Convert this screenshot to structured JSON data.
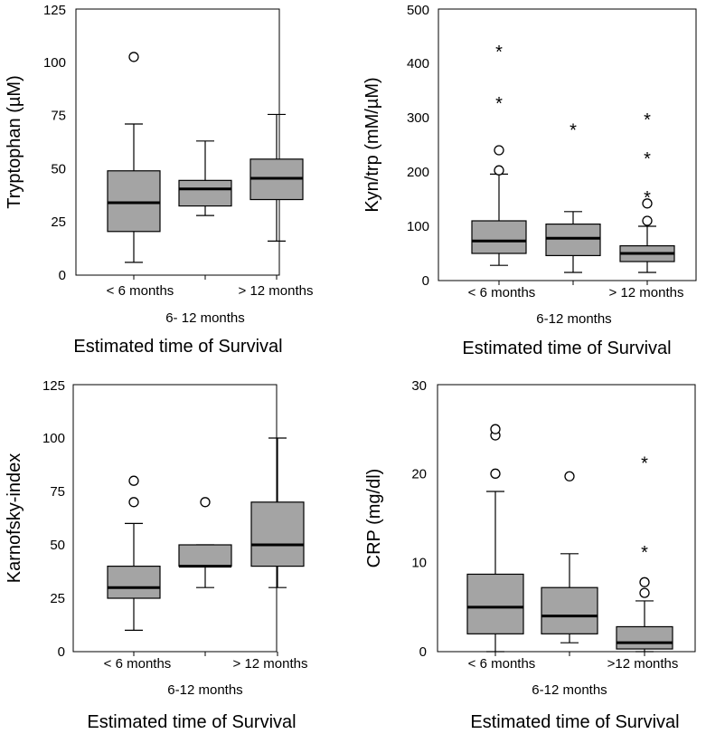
{
  "chart_data": [
    {
      "type": "boxplot",
      "ylabel": "Tryptophan (µM)",
      "xtitle": "Estimated time of Survival",
      "ylim": [
        0,
        125
      ],
      "yticks": [
        "0",
        "25",
        "50",
        "75",
        "100",
        "125"
      ],
      "xtick_labels_top": [
        "< 6 months",
        "",
        "> 12 months"
      ],
      "xtick_label_middle": "6- 12 months",
      "groups": [
        {
          "name": "< 6 months",
          "min": 6,
          "q1": 20.5,
          "median": 34,
          "q3": 49,
          "max": 71,
          "outliers": [
            102.5
          ],
          "extremes": []
        },
        {
          "name": "6-12 months",
          "min": 28,
          "q1": 32.5,
          "median": 40.5,
          "q3": 44.5,
          "max": 63,
          "outliers": [],
          "extremes": []
        },
        {
          "name": "> 12 months",
          "min": 16,
          "q1": 35.5,
          "median": 45.5,
          "q3": 54.5,
          "max": 75.5,
          "outliers": [],
          "extremes": []
        }
      ]
    },
    {
      "type": "boxplot",
      "ylabel": "Kyn/trp (mM/µM)",
      "xtitle": "Estimated time of Survival",
      "ylim": [
        0,
        500
      ],
      "yticks": [
        "0",
        "100",
        "200",
        "300",
        "400",
        "500"
      ],
      "xtick_labels_top": [
        "< 6 months",
        "",
        "> 12 months"
      ],
      "xtick_label_middle": "6-12 months",
      "groups": [
        {
          "name": "< 6 months",
          "min": 28,
          "q1": 50,
          "median": 73,
          "q3": 110,
          "max": 196,
          "outliers": [
            203,
            240
          ],
          "extremes": [
            330,
            425
          ]
        },
        {
          "name": "6-12 months",
          "min": 15,
          "q1": 46,
          "median": 78,
          "q3": 104,
          "max": 127,
          "outliers": [],
          "extremes": [
            281
          ]
        },
        {
          "name": "> 12 months",
          "min": 15,
          "q1": 35,
          "median": 50,
          "q3": 64,
          "max": 100,
          "outliers": [
            110,
            142
          ],
          "extremes": [
            157,
            228,
            300
          ]
        }
      ]
    },
    {
      "type": "boxplot",
      "ylabel": "Karnofsky-index",
      "xtitle": "Estimated time of Survival",
      "ylim": [
        0,
        125
      ],
      "yticks": [
        "0",
        "25",
        "50",
        "75",
        "100",
        "125"
      ],
      "xtick_labels_top": [
        "< 6 months",
        "",
        "> 12 months"
      ],
      "xtick_label_middle": "6-12 months",
      "groups": [
        {
          "name": "< 6 months",
          "min": 10,
          "q1": 25,
          "median": 30,
          "q3": 40,
          "max": 60,
          "outliers": [
            70,
            80
          ],
          "extremes": []
        },
        {
          "name": "6-12 months",
          "min": 30,
          "q1": 40,
          "median": 40,
          "q3": 50,
          "max": 50,
          "outliers": [
            70
          ],
          "extremes": []
        },
        {
          "name": "> 12 months",
          "min": 30,
          "q1": 40,
          "median": 50,
          "q3": 70,
          "max": 100,
          "outliers": [],
          "extremes": []
        }
      ]
    },
    {
      "type": "boxplot",
      "ylabel": "CRP (mg/dl)",
      "xtitle": "Estimated time of Survival",
      "ylim": [
        0,
        30
      ],
      "yticks": [
        "0",
        "10",
        "20",
        "30"
      ],
      "xtick_labels_top": [
        "< 6 months",
        "",
        ">12 months"
      ],
      "xtick_label_middle": "6-12 months",
      "groups": [
        {
          "name": "< 6 months",
          "min": 0,
          "q1": 2,
          "median": 5,
          "q3": 8.7,
          "max": 18,
          "outliers": [
            20,
            24.3,
            25
          ],
          "extremes": []
        },
        {
          "name": "6-12 months",
          "min": 1,
          "q1": 2,
          "median": 4,
          "q3": 7.2,
          "max": 11,
          "outliers": [
            19.7
          ],
          "extremes": []
        },
        {
          "name": ">12 months",
          "min": 0,
          "q1": 0.3,
          "median": 1,
          "q3": 2.8,
          "max": 5.7,
          "outliers": [
            6.6,
            7.8
          ],
          "extremes": [
            11.4,
            21.4
          ]
        }
      ]
    }
  ],
  "colors": {
    "box": "#a4a4a4",
    "line": "#000000",
    "background": "#ffffff"
  }
}
